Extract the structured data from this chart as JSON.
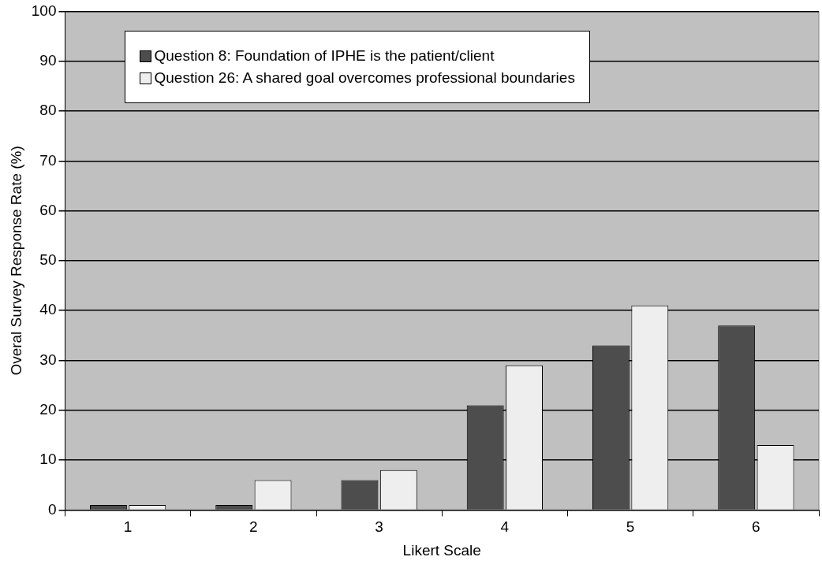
{
  "chart_data": {
    "type": "bar",
    "xlabel": "Likert Scale",
    "ylabel": "Overal Survey Response Rate (%)",
    "categories": [
      "1",
      "2",
      "3",
      "4",
      "5",
      "6"
    ],
    "series": [
      {
        "name": "Question 8: Foundation of IPHE is the patient/client",
        "color": "#4d4d4d",
        "values": [
          1,
          1,
          6,
          21,
          33,
          37
        ]
      },
      {
        "name": "Question 26: A shared goal overcomes professional boundaries",
        "color": "#eeeeee",
        "values": [
          1,
          6,
          8,
          29,
          41,
          13
        ]
      }
    ],
    "ylim": [
      0,
      100
    ],
    "yticks": [
      0,
      10,
      20,
      30,
      40,
      50,
      60,
      70,
      80,
      90,
      100
    ],
    "grid": "y",
    "legend": "top"
  }
}
